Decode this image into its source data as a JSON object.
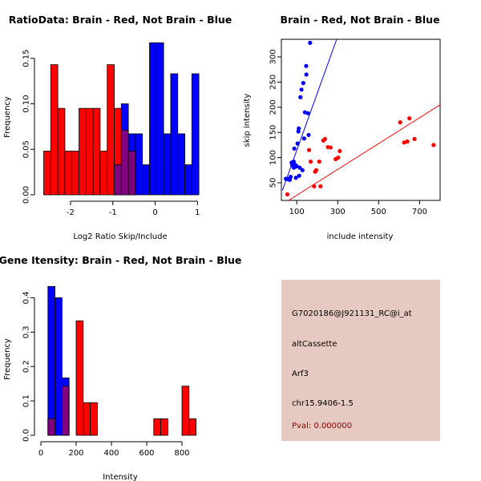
{
  "chart_data": [
    {
      "type": "histogram",
      "title": "RatioData: Brain - Red, Not Brain - Blue",
      "xlabel": "Log2 Ratio Skip/Include",
      "ylabel": "Frequency",
      "xlim": [
        -2.7,
        1.05
      ],
      "ylim": [
        0,
        0.17
      ],
      "xticks": [
        -2,
        -1,
        0,
        1
      ],
      "xtick_labels": [
        "-2",
        "-1",
        "0",
        "1"
      ],
      "yticks": [
        0,
        0.05,
        0.1,
        0.15
      ],
      "ytick_labels": [
        "0.00",
        "0.05",
        "0.10",
        "0.15"
      ],
      "bin_width": 0.1667,
      "series": [
        {
          "name": "Brain",
          "color": "#ff0000",
          "bin_starts": [
            -2.6333,
            -2.4667,
            -2.3,
            -2.1333,
            -1.9667,
            -1.8,
            -1.6333,
            -1.4667,
            -1.3,
            -1.1333,
            -0.9667,
            -0.8,
            -0.6333
          ],
          "values": [
            0.048,
            0.143,
            0.095,
            0.048,
            0.048,
            0.095,
            0.095,
            0.095,
            0.048,
            0.143,
            0.095,
            0.071,
            0.048
          ]
        },
        {
          "name": "Not Brain",
          "color": "#0000ff",
          "bin_starts": [
            -0.9667,
            -0.8,
            -0.6333,
            -0.4667,
            -0.3,
            -0.1333,
            0.0333,
            0.2,
            0.3667,
            0.5333,
            0.7,
            0.8667
          ],
          "values": [
            0.033,
            0.1,
            0.067,
            0.067,
            0.033,
            0.167,
            0.167,
            0.067,
            0.133,
            0.067,
            0.033,
            0.133
          ]
        }
      ]
    },
    {
      "type": "scatter",
      "title": "Brain - Red, Not Brain - Blue",
      "xlabel": "include intensity",
      "ylabel": "skip intensity",
      "xlim": [
        25,
        800
      ],
      "ylim": [
        15,
        335
      ],
      "xticks": [
        100,
        300,
        500,
        700
      ],
      "xtick_labels": [
        "100",
        "300",
        "500",
        "700"
      ],
      "yticks": [
        50,
        100,
        150,
        200,
        250,
        300
      ],
      "ytick_labels": [
        "50",
        "100",
        "150",
        "200",
        "250",
        "300"
      ],
      "series": [
        {
          "name": "Not Brain",
          "color": "#0000ff",
          "points": [
            [
              47,
              58
            ],
            [
              58,
              57
            ],
            [
              66,
              56
            ],
            [
              70,
              62
            ],
            [
              75,
              90
            ],
            [
              78,
              85
            ],
            [
              80,
              88
            ],
            [
              85,
              92
            ],
            [
              86,
              80
            ],
            [
              88,
              118
            ],
            [
              92,
              86
            ],
            [
              94,
              82
            ],
            [
              96,
              60
            ],
            [
              100,
              83
            ],
            [
              104,
              128
            ],
            [
              108,
              152
            ],
            [
              110,
              158
            ],
            [
              112,
              64
            ],
            [
              115,
              80
            ],
            [
              118,
              220
            ],
            [
              123,
              235
            ],
            [
              128,
              75
            ],
            [
              132,
              248
            ],
            [
              136,
              138
            ],
            [
              140,
              190
            ],
            [
              146,
              282
            ],
            [
              147,
              265
            ],
            [
              155,
              188
            ],
            [
              158,
              145
            ],
            [
              165,
              328
            ]
          ],
          "fit_line": [
            [
              30,
              35
            ],
            [
              295,
              335
            ]
          ]
        },
        {
          "name": "Brain",
          "color": "#ff0000",
          "points": [
            [
              54,
              27
            ],
            [
              160,
              115
            ],
            [
              168,
              92
            ],
            [
              185,
              43
            ],
            [
              190,
              72
            ],
            [
              195,
              75
            ],
            [
              210,
              92
            ],
            [
              216,
              43
            ],
            [
              230,
              134
            ],
            [
              238,
              137
            ],
            [
              252,
              121
            ],
            [
              265,
              120
            ],
            [
              290,
              97
            ],
            [
              302,
              100
            ],
            [
              310,
              113
            ],
            [
              605,
              170
            ],
            [
              625,
              130
            ],
            [
              640,
              132
            ],
            [
              650,
              178
            ],
            [
              675,
              137
            ],
            [
              768,
              125
            ]
          ],
          "fit_line": [
            [
              60,
              15
            ],
            [
              800,
              205
            ]
          ]
        }
      ]
    },
    {
      "type": "histogram",
      "title": "Gene Itensity: Brain - Red, Not Brain - Blue",
      "xlabel": "Intensity",
      "ylabel": "Frequency",
      "xlim": [
        0,
        900
      ],
      "ylim": [
        0,
        0.45
      ],
      "xticks": [
        0,
        200,
        400,
        600,
        800
      ],
      "xtick_labels": [
        "0",
        "200",
        "400",
        "600",
        "800"
      ],
      "yticks": [
        0,
        0.1,
        0.2,
        0.3,
        0.4
      ],
      "ytick_labels": [
        "0.0",
        "0.1",
        "0.2",
        "0.3",
        "0.4"
      ],
      "bin_width": 40,
      "series": [
        {
          "name": "Brain",
          "color": "#ff0000",
          "bin_starts": [
            40,
            120,
            200,
            240,
            280,
            640,
            680,
            800,
            840
          ],
          "values": [
            0.048,
            0.143,
            0.333,
            0.095,
            0.095,
            0.048,
            0.048,
            0.143,
            0.048
          ]
        },
        {
          "name": "Not Brain",
          "color": "#0000ff",
          "bin_starts": [
            40,
            80,
            120
          ],
          "values": [
            0.433,
            0.4,
            0.167
          ]
        }
      ]
    }
  ],
  "info_panel": {
    "probe_id": "G7020186@J921131_RC@i_at",
    "event_type": "altCassette",
    "gene": "Arf3",
    "location": "chr15.9406-1.5",
    "pval": "Pval: 0.000000",
    "pval_color": "#8b0000",
    "background": "#e6c9c1"
  },
  "colors": {
    "brain": "#ff0000",
    "not_brain": "#0000ff",
    "overlap": "#800080"
  }
}
